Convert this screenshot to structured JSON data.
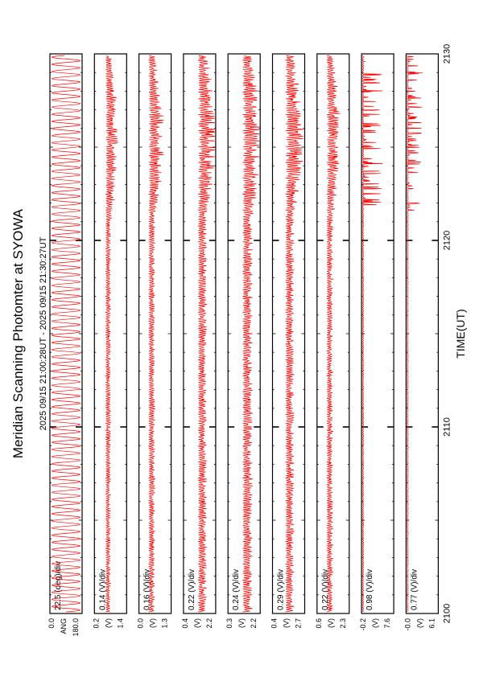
{
  "title": "Meridian Scanning Photomter at SYOWA",
  "time_range": "2025 09/15 21:00:28UT - 2025 09/15 21:30:27UT",
  "xlabel": "TIME(UT)",
  "colors": {
    "trace": "#ff0000",
    "axis": "#000000",
    "background": "#ffffff"
  },
  "chart_data": {
    "type": "line",
    "title": "Meridian Scanning Photomter at SYOWA",
    "subtitle": "2025 09/15 21:00:28UT - 2025 09/15 21:30:27UT",
    "xlabel": "TIME(UT)",
    "x_ticks": [
      "2100",
      "2110",
      "2120",
      "2130"
    ],
    "xlim": [
      "2100",
      "2130"
    ],
    "layout": "stacked panels, rotated 90 degrees counter-clockwise",
    "grid": false,
    "panels": [
      {
        "name": "ANG",
        "unit_label": "22.5 (deg)/div",
        "ticks": [
          "0.0",
          "ANG",
          "180.0"
        ],
        "ylim": [
          0.0,
          180.0
        ],
        "trace": {
          "kind": "scan",
          "base": 0.5,
          "amp": 0.45,
          "burst": 0.0
        }
      },
      {
        "name": "(V)",
        "unit_label": "0.14 (V)/div",
        "ticks": [
          "0.2",
          "(V)",
          "1.4"
        ],
        "ylim": [
          0.2,
          1.4
        ],
        "trace": {
          "kind": "photo",
          "base": 0.35,
          "amp": 0.2,
          "burst": 0.3
        }
      },
      {
        "name": "(V)",
        "unit_label": "0.16 (V)/div",
        "ticks": [
          "0.0",
          "(V)",
          "1.3"
        ],
        "ylim": [
          0.0,
          1.3
        ],
        "trace": {
          "kind": "photo",
          "base": 0.3,
          "amp": 0.25,
          "burst": 0.35
        }
      },
      {
        "name": "(V)",
        "unit_label": "0.22 (V)/div",
        "ticks": [
          "0.4",
          "(V)",
          "2.2"
        ],
        "ylim": [
          0.4,
          2.2
        ],
        "trace": {
          "kind": "photo",
          "base": 0.45,
          "amp": 0.35,
          "burst": 0.4
        }
      },
      {
        "name": "(V)",
        "unit_label": "0.24 (V)/div",
        "ticks": [
          "0.3",
          "(V)",
          "2.2"
        ],
        "ylim": [
          0.3,
          2.2
        ],
        "trace": {
          "kind": "photo",
          "base": 0.45,
          "amp": 0.4,
          "burst": 0.3
        }
      },
      {
        "name": "(V)",
        "unit_label": "0.29 (V)/div",
        "ticks": [
          "0.4",
          "(V)",
          "2.7"
        ],
        "ylim": [
          0.4,
          2.7
        ],
        "trace": {
          "kind": "photo",
          "base": 0.4,
          "amp": 0.35,
          "burst": 0.4
        }
      },
      {
        "name": "(V)",
        "unit_label": "0.22 (V)/div",
        "ticks": [
          "0.6",
          "(V)",
          "2.3"
        ],
        "ylim": [
          0.6,
          2.3
        ],
        "trace": {
          "kind": "photo",
          "base": 0.3,
          "amp": 0.25,
          "burst": 0.3
        }
      },
      {
        "name": "(V)",
        "unit_label": "0.98 (V)/div",
        "ticks": [
          "-0.2",
          "(V)",
          "7.6"
        ],
        "ylim": [
          -0.2,
          7.6
        ],
        "trace": {
          "kind": "spike",
          "base": 0.03,
          "amp": 0.04,
          "burst": 0.6
        }
      },
      {
        "name": "(V)",
        "unit_label": "0.77 (V)/div",
        "ticks": [
          "-0.0",
          "(V)",
          "6.1"
        ],
        "ylim": [
          0.0,
          6.1
        ],
        "trace": {
          "kind": "spike",
          "base": 0.03,
          "amp": 0.04,
          "burst": 0.45
        }
      }
    ]
  }
}
